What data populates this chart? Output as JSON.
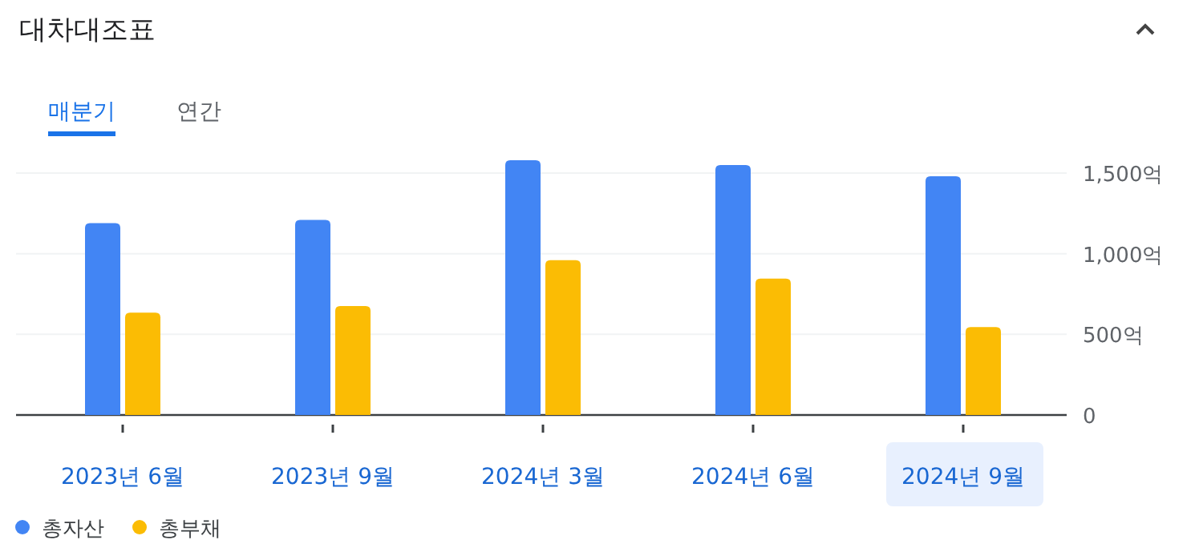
{
  "chart_data": {
    "type": "bar",
    "title": "대차대조표",
    "annotations": [
      "매분기",
      "연간"
    ],
    "categories": [
      "2023년 6월",
      "2023년 9월",
      "2024년 3월",
      "2024년 6월",
      "2024년 9월"
    ],
    "series": [
      {
        "name": "총자산",
        "color": "#4285f4",
        "values": [
          1190,
          1210,
          1580,
          1550,
          1480
        ]
      },
      {
        "name": "총부채",
        "color": "#fbbc04",
        "values": [
          635,
          675,
          960,
          845,
          545
        ]
      }
    ],
    "ylim": [
      0,
      1600
    ],
    "yticks": [
      0,
      {
        "value": 500,
        "label": "500억"
      },
      {
        "value": 1000,
        "label": "1,000억"
      },
      {
        "value": 1500,
        "label": "1,500억"
      }
    ],
    "grid": "y",
    "legend": "bottom left"
  }
}
